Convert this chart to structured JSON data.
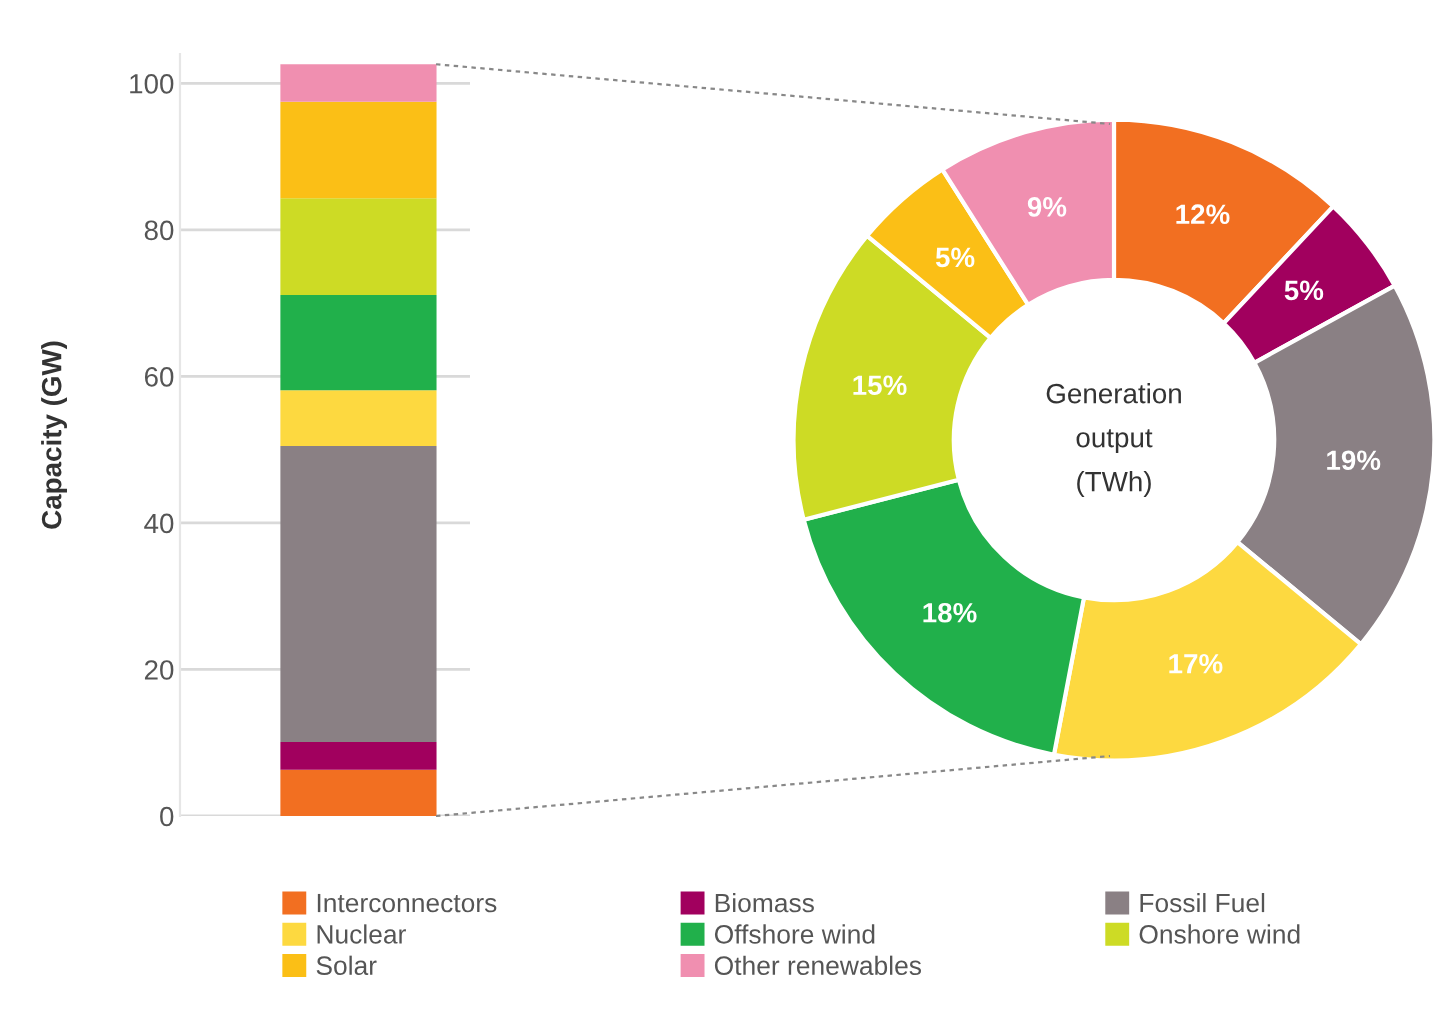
{
  "chart_data": [
    {
      "type": "bar",
      "stacked": true,
      "ylabel": "Capacity (GW)",
      "categories": [
        null
      ],
      "ylim": [
        0,
        104
      ],
      "yticks": [
        0,
        20,
        40,
        60,
        80,
        100
      ],
      "grid": "y",
      "tick_labels": "y",
      "series": [
        {
          "color": "#f26f21",
          "values": [
            6.3
          ]
        },
        {
          "color": "#a1005e",
          "values": [
            3.8
          ]
        },
        {
          "color": "#8a8084",
          "values": [
            40.4
          ]
        },
        {
          "color": "#fdd940",
          "values": [
            7.6
          ]
        },
        {
          "color": "#21b04b",
          "values": [
            13.0
          ]
        },
        {
          "color": "#cddb25",
          "values": [
            13.2
          ]
        },
        {
          "color": "#fbbf16",
          "values": [
            13.2
          ]
        },
        {
          "color": "#f08fb0",
          "values": [
            5.1
          ]
        }
      ]
    },
    {
      "type": "donut",
      "legend": "bottom",
      "annotations": [
        "Generation\noutput\n(TWh)"
      ],
      "categories": [
        "Interconnectors",
        "Biomass",
        "Fossil Fuel",
        "Nuclear",
        "Offshore wind",
        "Onshore wind",
        "Solar",
        "Other renewables"
      ],
      "values": [
        12,
        5,
        19,
        17,
        18,
        15,
        5,
        9
      ],
      "value_labels": [
        "12%",
        "5%",
        "19%",
        "17%",
        "18%",
        "15%",
        "5%",
        "9%"
      ],
      "colors": [
        "#f26f21",
        "#a1005e",
        "#8a8084",
        "#fdd940",
        "#21b04b",
        "#cddb25",
        "#fbbf16",
        "#f08fb0"
      ]
    }
  ]
}
